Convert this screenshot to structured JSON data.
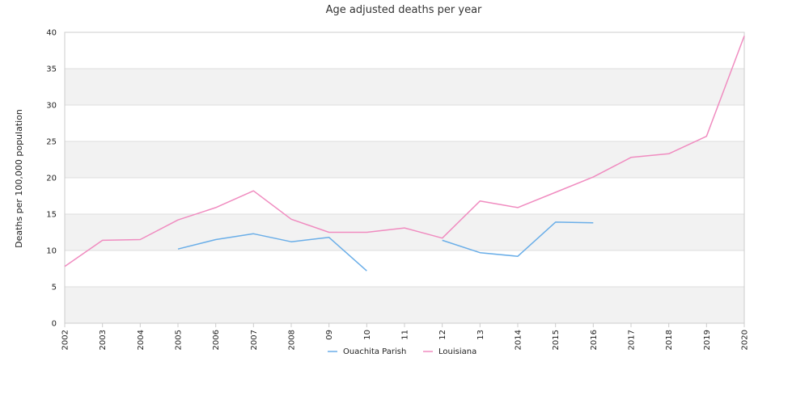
{
  "chart_data": {
    "type": "line",
    "title": "Age adjusted deaths per year",
    "xlabel": "",
    "ylabel": "Deaths per 100,000 population",
    "categories": [
      "2002",
      "2003",
      "2004",
      "2005",
      "2006",
      "2007",
      "2008",
      "09",
      "10",
      "11",
      "12",
      "13",
      "2014",
      "2015",
      "2016",
      "2017",
      "2018",
      "2019",
      "2020"
    ],
    "ylim": [
      0,
      40
    ],
    "yticks": [
      0,
      5,
      10,
      15,
      20,
      25,
      30,
      35,
      40
    ],
    "grid": "horizontal alternating bands",
    "legend_position": "bottom-center",
    "series": [
      {
        "name": "Ouachita Parish",
        "color": "#6aaee8",
        "values": [
          null,
          null,
          null,
          10.2,
          11.5,
          12.3,
          11.2,
          11.8,
          7.2,
          null,
          11.4,
          9.7,
          9.2,
          13.9,
          13.8,
          null,
          null,
          null,
          null
        ]
      },
      {
        "name": "Louisiana",
        "color": "#f08cc0",
        "values": [
          7.8,
          11.4,
          11.5,
          14.2,
          15.9,
          18.2,
          14.3,
          12.5,
          12.5,
          13.1,
          11.7,
          16.8,
          15.9,
          18.0,
          20.1,
          22.8,
          23.3,
          25.7,
          39.5
        ]
      }
    ]
  }
}
